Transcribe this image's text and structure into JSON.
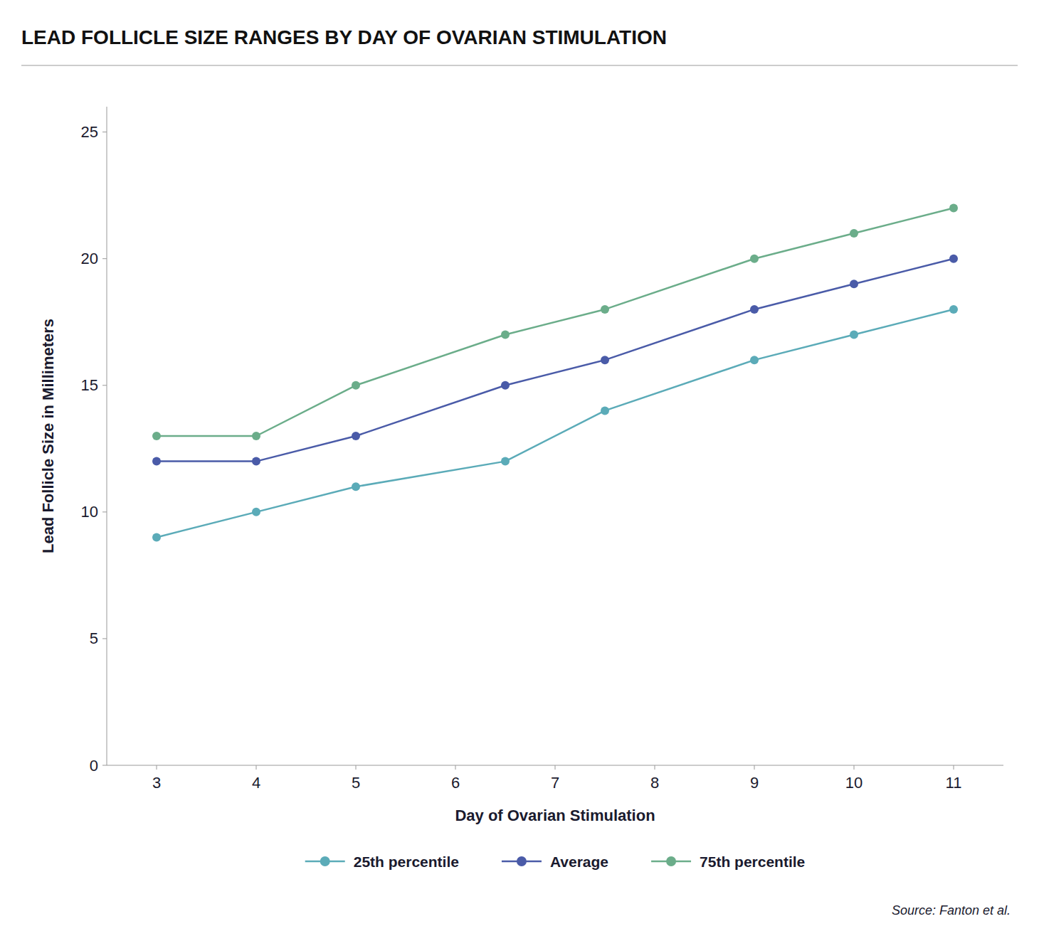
{
  "chart_data": {
    "type": "line",
    "title": "LEAD FOLLICLE SIZE RANGES BY DAY OF OVARIAN STIMULATION",
    "xlabel": "Day of Ovarian Stimulation",
    "ylabel": "Lead Follicle Size in Millimeters",
    "source": "Source: Fanton et al.",
    "x": [
      3,
      4,
      5,
      6.5,
      7.5,
      9,
      10,
      11
    ],
    "series": [
      {
        "name": "25th percentile",
        "color": "#5BABB8",
        "values": [
          9,
          10,
          11,
          12,
          14,
          16,
          17,
          18
        ]
      },
      {
        "name": "Average",
        "color": "#4A5BA8",
        "values": [
          12,
          12,
          13,
          15,
          16,
          18,
          19,
          20
        ]
      },
      {
        "name": "75th percentile",
        "color": "#6BAD8A",
        "values": [
          13,
          13,
          15,
          17,
          18,
          20,
          21,
          22
        ]
      }
    ],
    "xlim": [
      2.5,
      11.5
    ],
    "ylim": [
      0,
      26
    ],
    "xticks": [
      3,
      4,
      5,
      6,
      7,
      8,
      9,
      10,
      11
    ],
    "yticks": [
      0,
      5,
      10,
      15,
      20,
      25
    ],
    "grid": false,
    "legend": "bottom",
    "marker": "circle"
  }
}
